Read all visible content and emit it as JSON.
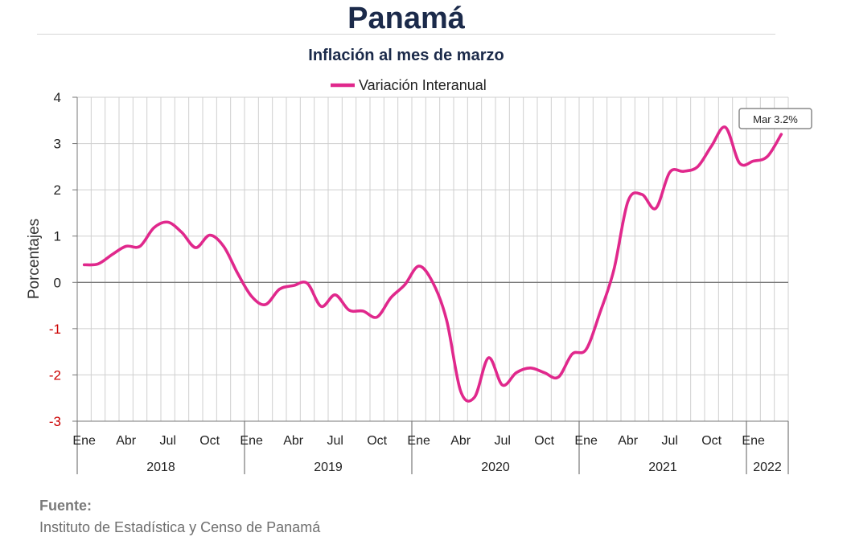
{
  "page": {
    "title": "Panamá",
    "subtitle": "Inflación al mes de marzo",
    "source_label": "Fuente:",
    "source_text": "Instituto de Estadística y Censo de Panamá"
  },
  "chart_data": {
    "type": "line",
    "ylabel": "Porcentajes",
    "ylim": [
      -3,
      4
    ],
    "yticks": [
      "4",
      "3",
      "2",
      "1",
      "0",
      "-1",
      "-2",
      "-3"
    ],
    "ytick_values": [
      4,
      3,
      2,
      1,
      0,
      -1,
      -2,
      -3
    ],
    "negative_tick_color": "#cc0000",
    "grid": true,
    "legend": {
      "placement": "top",
      "entries": [
        "Variación Interanual"
      ]
    },
    "x_month_labels": [
      "Ene",
      "Abr",
      "Jul",
      "Oct",
      "Ene",
      "Abr",
      "Jul",
      "Oct",
      "Ene",
      "Abr",
      "Jul",
      "Oct",
      "Ene",
      "Abr",
      "Jul",
      "Oct",
      "Ene"
    ],
    "years": [
      "2018",
      "2019",
      "2020",
      "2021",
      "2022"
    ],
    "series": [
      {
        "name": "Variación Interanual",
        "color": "#e0288c",
        "x": [
          "2018-01",
          "2018-02",
          "2018-03",
          "2018-04",
          "2018-05",
          "2018-06",
          "2018-07",
          "2018-08",
          "2018-09",
          "2018-10",
          "2018-11",
          "2018-12",
          "2019-01",
          "2019-02",
          "2019-03",
          "2019-04",
          "2019-05",
          "2019-06",
          "2019-07",
          "2019-08",
          "2019-09",
          "2019-10",
          "2019-11",
          "2019-12",
          "2020-01",
          "2020-02",
          "2020-03",
          "2020-04",
          "2020-05",
          "2020-06",
          "2020-07",
          "2020-08",
          "2020-09",
          "2020-10",
          "2020-11",
          "2020-12",
          "2021-01",
          "2021-02",
          "2021-03",
          "2021-04",
          "2021-05",
          "2021-06",
          "2021-07",
          "2021-08",
          "2021-09",
          "2021-10",
          "2021-11",
          "2021-12",
          "2022-01",
          "2022-02",
          "2022-03"
        ],
        "values": [
          0.38,
          0.4,
          0.6,
          0.78,
          0.78,
          1.18,
          1.3,
          1.08,
          0.75,
          1.02,
          0.78,
          0.2,
          -0.3,
          -0.48,
          -0.15,
          -0.07,
          -0.02,
          -0.52,
          -0.27,
          -0.6,
          -0.62,
          -0.75,
          -0.33,
          -0.05,
          0.35,
          0.0,
          -0.82,
          -2.35,
          -2.48,
          -1.63,
          -2.22,
          -1.95,
          -1.85,
          -1.95,
          -2.05,
          -1.55,
          -1.45,
          -0.65,
          0.28,
          1.75,
          1.9,
          1.6,
          2.38,
          2.4,
          2.5,
          2.95,
          3.35,
          2.58,
          2.62,
          2.72,
          3.2
        ]
      }
    ],
    "annotation": {
      "text": "Mar 3.2%",
      "x": "2022-03",
      "y": 3.2
    }
  }
}
